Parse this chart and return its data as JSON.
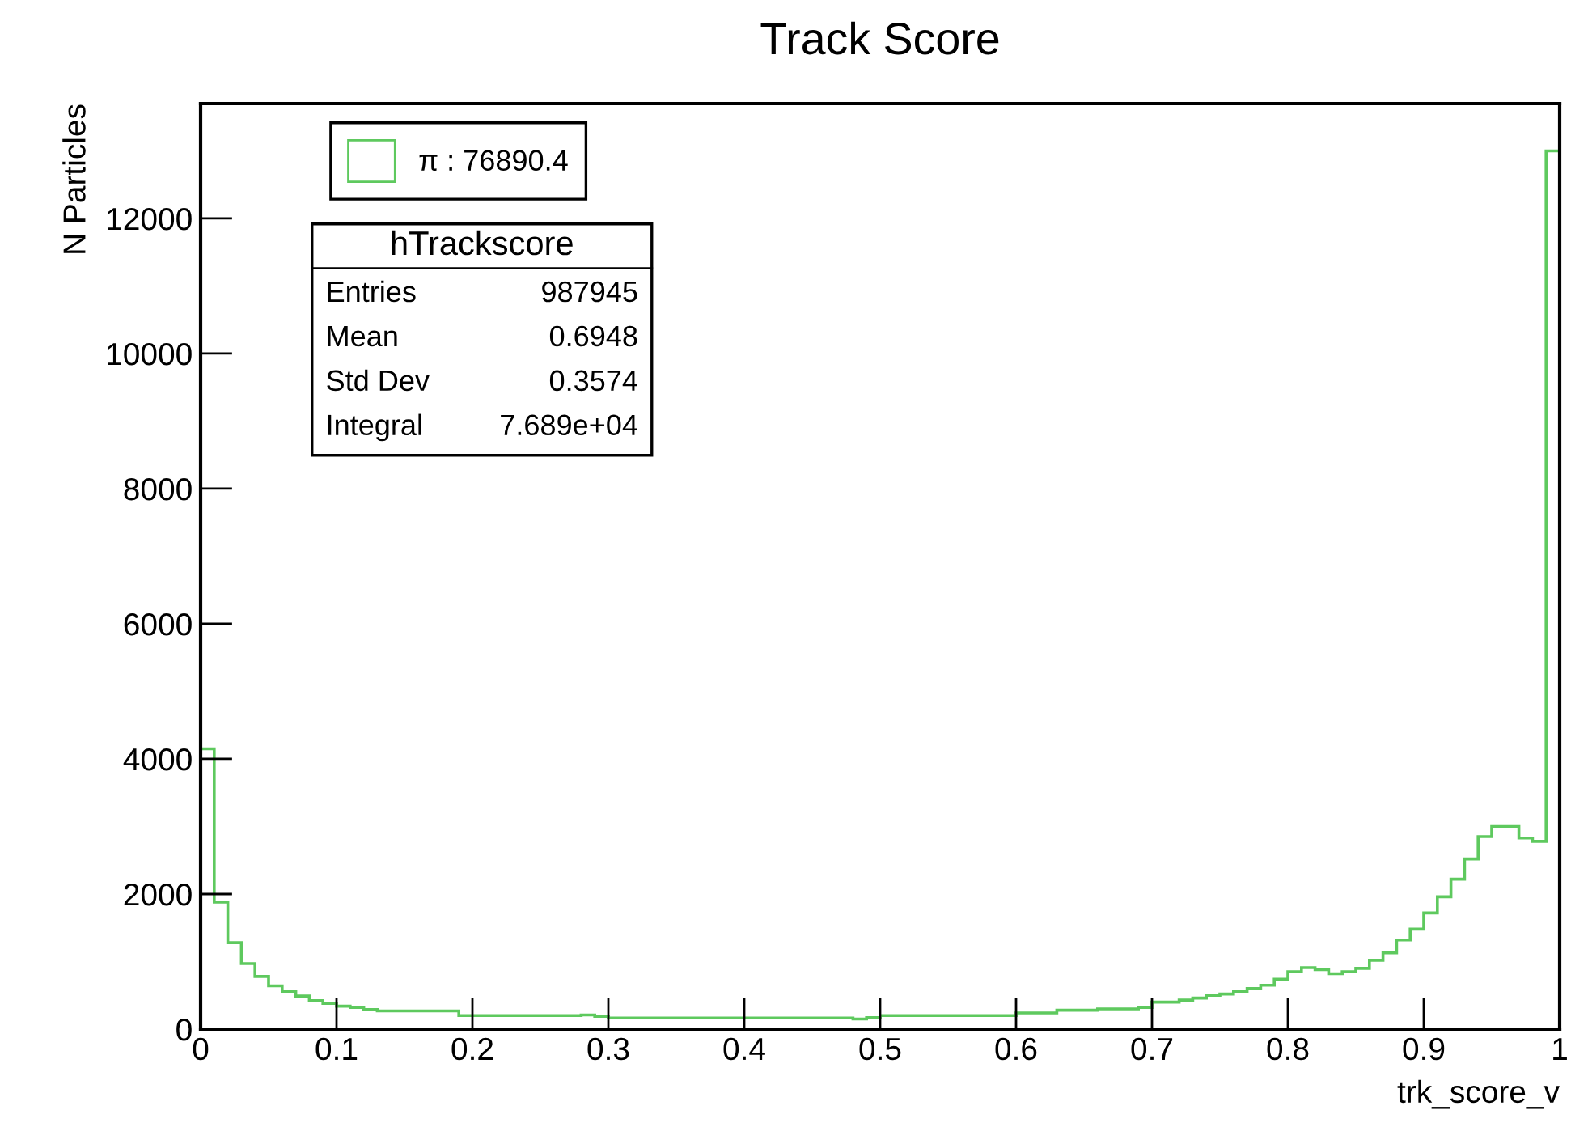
{
  "chart_data": {
    "type": "histogram",
    "title": "Track Score",
    "xlabel": "trk_score_v",
    "ylabel": "N Particles",
    "bins": [
      0,
      0.01,
      0.02,
      0.03,
      0.04,
      0.05,
      0.06,
      0.07,
      0.08,
      0.09,
      0.1,
      0.11,
      0.12,
      0.13,
      0.14,
      0.15,
      0.16,
      0.17,
      0.18,
      0.19,
      0.2,
      0.21,
      0.22,
      0.23,
      0.24,
      0.25,
      0.26,
      0.27,
      0.28,
      0.29,
      0.3,
      0.31,
      0.32,
      0.33,
      0.34,
      0.35,
      0.36,
      0.37,
      0.38,
      0.39,
      0.4,
      0.41,
      0.42,
      0.43,
      0.44,
      0.45,
      0.46,
      0.47,
      0.48,
      0.49,
      0.5,
      0.51,
      0.52,
      0.53,
      0.54,
      0.55,
      0.56,
      0.57,
      0.58,
      0.59,
      0.6,
      0.61,
      0.62,
      0.63,
      0.64,
      0.65,
      0.66,
      0.67,
      0.68,
      0.69,
      0.7,
      0.71,
      0.72,
      0.73,
      0.74,
      0.75,
      0.76,
      0.77,
      0.78,
      0.79,
      0.8,
      0.81,
      0.82,
      0.83,
      0.84,
      0.85,
      0.86,
      0.87,
      0.88,
      0.89,
      0.9,
      0.91,
      0.92,
      0.93,
      0.94,
      0.95,
      0.96,
      0.97,
      0.98,
      0.99,
      1
    ],
    "series": [
      {
        "name": "π : 76890.4",
        "color": "#5ec95e",
        "values": [
          4150,
          1880,
          1280,
          970,
          780,
          640,
          560,
          490,
          420,
          380,
          340,
          320,
          290,
          270,
          270,
          270,
          270,
          270,
          270,
          200,
          200,
          200,
          200,
          200,
          200,
          200,
          200,
          200,
          210,
          190,
          165,
          165,
          165,
          165,
          165,
          165,
          165,
          165,
          165,
          165,
          165,
          165,
          165,
          165,
          165,
          165,
          165,
          165,
          150,
          170,
          200,
          200,
          200,
          200,
          200,
          200,
          200,
          200,
          200,
          200,
          240,
          240,
          240,
          280,
          280,
          280,
          300,
          300,
          300,
          320,
          400,
          400,
          430,
          460,
          500,
          520,
          560,
          600,
          650,
          740,
          850,
          910,
          880,
          820,
          850,
          900,
          1020,
          1130,
          1320,
          1480,
          1720,
          1960,
          2220,
          2520,
          2850,
          3000,
          3000,
          2830,
          2780,
          13000
        ]
      }
    ],
    "xlim": [
      0,
      1
    ],
    "ylim": [
      0,
      13700
    ],
    "xticks": [
      0,
      0.1,
      0.2,
      0.3,
      0.4,
      0.5,
      0.6,
      0.7,
      0.8,
      0.9,
      1
    ],
    "yticks": [
      0,
      2000,
      4000,
      6000,
      8000,
      10000,
      12000
    ],
    "legend": "top left",
    "grid": false,
    "annotations": [
      "hTrackscore",
      "Entries",
      "987945",
      "Mean",
      "0.6948",
      "Std Dev",
      "0.3574",
      "Integral",
      "7.689e+04"
    ]
  }
}
